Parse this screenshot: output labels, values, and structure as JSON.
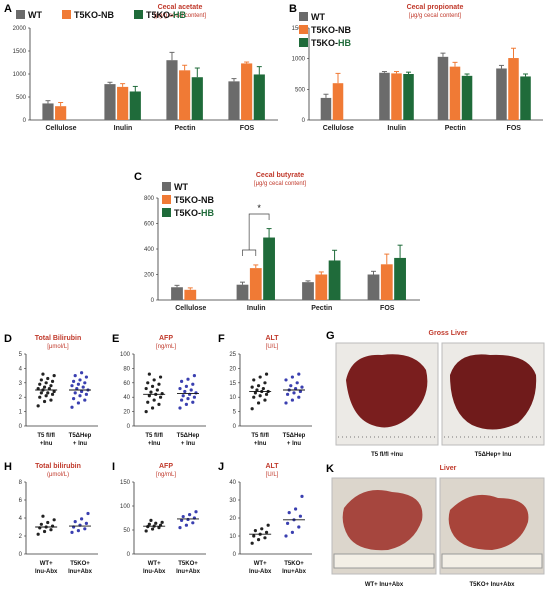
{
  "colors": {
    "wt": "#6b6b6b",
    "nb": "#f07a35",
    "hb": "#1f6b3a",
    "dots": "#222222",
    "dots_blue": "#3a3fb0",
    "title_red": "#c0392b"
  },
  "legend": {
    "wt": "WT",
    "nb": "T5KO-NB",
    "hb_prefix": "T5KO-",
    "hb_suffix": "HB"
  },
  "panels": {
    "A": {
      "letter": "A",
      "title": "Cecal acetate",
      "subtitle": "[μg/g cecal content]"
    },
    "B": {
      "letter": "B",
      "title": "Cecal propionate",
      "subtitle": "[μg/g cecal content]"
    },
    "C": {
      "letter": "C",
      "title": "Cecal butyrate",
      "subtitle": "[μg/g cecal content]",
      "sig": "*"
    },
    "D": {
      "letter": "D",
      "title": "Total Bilirubin",
      "subtitle": "[μmol/L]"
    },
    "E": {
      "letter": "E",
      "title": "AFP",
      "subtitle": "[ng/mL]"
    },
    "F": {
      "letter": "F",
      "title": "ALT",
      "subtitle": "[U/L]"
    },
    "G": {
      "letter": "G",
      "title": "Gross Liver",
      "label_left": "T5 fl/fl +Inu",
      "label_right": "T5ΔHep+ Inu"
    },
    "H": {
      "letter": "H",
      "title": "Total bilirubin",
      "subtitle": "(μmol/L)"
    },
    "I": {
      "letter": "I",
      "title": "AFP",
      "subtitle": "[ng/mL]"
    },
    "J": {
      "letter": "J",
      "title": "ALT",
      "subtitle": "[U/L]"
    },
    "K": {
      "letter": "K",
      "title": "Liver",
      "label_left": "WT+ Inu+Abx",
      "label_right": "T5KO+ Inu+Abx"
    }
  },
  "groups_top": [
    "T5 fl/fl",
    "T5ΔHep"
  ],
  "groups_top_sub": [
    "+Inu",
    "+ Inu"
  ],
  "groups_bottom": [
    "WT+",
    "T5KO+"
  ],
  "groups_bottom_sub": [
    "Inu-Abx",
    "Inu+Abx"
  ],
  "chart_data": [
    {
      "id": "A",
      "type": "bar",
      "title": "Cecal acetate",
      "ylabel": "μg/g cecal content",
      "categories": [
        "Cellulose",
        "Inulin",
        "Pectin",
        "FOS"
      ],
      "ylim": [
        0,
        2000
      ],
      "yticks": [
        0,
        500,
        1000,
        1500,
        2000
      ],
      "series": [
        {
          "name": "WT",
          "values": [
            360,
            780,
            1300,
            840
          ],
          "err": [
            60,
            40,
            170,
            60
          ]
        },
        {
          "name": "T5KO-NB",
          "values": [
            300,
            720,
            1080,
            1230
          ],
          "err": [
            80,
            70,
            110,
            30
          ]
        },
        {
          "name": "T5KO-HB",
          "values": [
            0,
            620,
            930,
            990
          ],
          "err": [
            0,
            110,
            200,
            170
          ]
        }
      ]
    },
    {
      "id": "B",
      "type": "bar",
      "title": "Cecal propionate",
      "ylabel": "μg/g cecal content",
      "categories": [
        "Cellulose",
        "Inulin",
        "Pectin",
        "FOS"
      ],
      "ylim": [
        0,
        1500
      ],
      "yticks": [
        0,
        500,
        1000,
        1500
      ],
      "series": [
        {
          "name": "WT",
          "values": [
            360,
            770,
            1030,
            840
          ],
          "err": [
            60,
            20,
            60,
            50
          ]
        },
        {
          "name": "T5KO-NB",
          "values": [
            600,
            760,
            870,
            1010
          ],
          "err": [
            160,
            30,
            70,
            160
          ]
        },
        {
          "name": "T5KO-HB",
          "values": [
            0,
            750,
            720,
            710
          ],
          "err": [
            0,
            30,
            30,
            40
          ]
        }
      ]
    },
    {
      "id": "C",
      "type": "bar",
      "title": "Cecal butyrate",
      "ylabel": "μg/g cecal content",
      "categories": [
        "Cellulose",
        "Inulin",
        "Pectin",
        "FOS"
      ],
      "ylim": [
        0,
        800
      ],
      "yticks": [
        0,
        200,
        400,
        600,
        800
      ],
      "series": [
        {
          "name": "WT",
          "values": [
            100,
            120,
            140,
            200
          ],
          "err": [
            15,
            20,
            10,
            25
          ]
        },
        {
          "name": "T5KO-NB",
          "values": [
            80,
            250,
            200,
            280
          ],
          "err": [
            15,
            25,
            20,
            80
          ]
        },
        {
          "name": "T5KO-HB",
          "values": [
            0,
            490,
            310,
            330
          ],
          "err": [
            0,
            70,
            80,
            100
          ]
        }
      ]
    },
    {
      "id": "D",
      "type": "scatter",
      "title": "Total Bilirubin",
      "ylabel": "μmol/L",
      "ylim": [
        0,
        5
      ],
      "yticks": [
        0,
        1,
        2,
        3,
        4,
        5
      ],
      "groups": [
        "T5 fl/fl +Inu",
        "T5ΔHep + Inu"
      ],
      "points": [
        [
          1.4,
          1.7,
          1.8,
          2.0,
          2.1,
          2.2,
          2.3,
          2.3,
          2.4,
          2.5,
          2.6,
          2.6,
          2.7,
          2.8,
          2.9,
          3.0,
          3.1,
          3.2,
          3.3,
          3.5,
          3.6
        ],
        [
          1.3,
          1.6,
          1.8,
          1.9,
          2.1,
          2.2,
          2.3,
          2.4,
          2.5,
          2.6,
          2.7,
          2.8,
          2.9,
          3.0,
          3.1,
          3.2,
          3.4,
          3.5,
          3.7
        ]
      ],
      "means": [
        2.5,
        2.5
      ]
    },
    {
      "id": "E",
      "type": "scatter",
      "title": "AFP",
      "ylabel": "ng/mL",
      "ylim": [
        0,
        100
      ],
      "yticks": [
        0,
        20,
        40,
        60,
        80,
        100
      ],
      "groups": [
        "T5 fl/fl +Inu",
        "T5ΔHep + Inu"
      ],
      "points": [
        [
          20,
          25,
          30,
          33,
          36,
          40,
          42,
          44,
          45,
          47,
          50,
          52,
          55,
          58,
          60,
          64,
          68,
          72
        ],
        [
          25,
          30,
          33,
          36,
          38,
          40,
          42,
          44,
          46,
          48,
          50,
          52,
          55,
          58,
          62,
          65,
          70
        ]
      ],
      "means": [
        44,
        45
      ]
    },
    {
      "id": "F",
      "type": "scatter",
      "title": "ALT",
      "ylabel": "U/L",
      "ylim": [
        0,
        25
      ],
      "yticks": [
        0,
        5,
        10,
        15,
        20,
        25
      ],
      "groups": [
        "T5 fl/fl +Inu",
        "T5ΔHep + Inu"
      ],
      "points": [
        [
          6,
          8,
          9,
          10,
          10.5,
          11,
          11.5,
          12,
          12,
          12.5,
          13,
          13.5,
          14,
          15,
          16,
          17,
          18
        ],
        [
          8,
          9,
          10,
          11,
          11.5,
          12,
          12.5,
          13,
          13.5,
          14,
          15,
          16,
          17,
          18
        ]
      ],
      "means": [
        12,
        12.5
      ]
    },
    {
      "id": "H",
      "type": "scatter",
      "title": "Total bilirubin",
      "ylabel": "μmol/L",
      "ylim": [
        0,
        8
      ],
      "yticks": [
        0,
        2,
        4,
        6,
        8
      ],
      "groups": [
        "WT+ Inu-Abx",
        "T5KO+ Inu+Abx"
      ],
      "points": [
        [
          2.2,
          2.5,
          2.7,
          2.9,
          3.0,
          3.1,
          3.3,
          3.5,
          3.8,
          4.2
        ],
        [
          2.4,
          2.6,
          2.8,
          3.0,
          3.2,
          3.4,
          3.6,
          3.9,
          4.5
        ]
      ],
      "means": [
        3.0,
        3.1
      ]
    },
    {
      "id": "I",
      "type": "scatter",
      "title": "AFP",
      "ylabel": "ng/mL",
      "ylim": [
        0,
        150
      ],
      "yticks": [
        0,
        50,
        100,
        150
      ],
      "groups": [
        "WT+ Inu-Abx",
        "T5KO+ Inu+Abx"
      ],
      "points": [
        [
          48,
          52,
          55,
          57,
          58,
          60,
          62,
          64,
          66,
          70
        ],
        [
          55,
          60,
          65,
          70,
          72,
          75,
          78,
          82,
          88
        ]
      ],
      "means": [
        58,
        73
      ]
    },
    {
      "id": "J",
      "type": "scatter",
      "title": "ALT",
      "ylabel": "U/L",
      "ylim": [
        0,
        40
      ],
      "yticks": [
        0,
        10,
        20,
        30,
        40
      ],
      "groups": [
        "WT+ Inu-Abx",
        "T5KO+ Inu+Abx"
      ],
      "points": [
        [
          6,
          8,
          9,
          10,
          11,
          12,
          13,
          14,
          16
        ],
        [
          10,
          12,
          15,
          17,
          19,
          21,
          23,
          25,
          32
        ]
      ],
      "means": [
        11,
        19
      ]
    }
  ]
}
